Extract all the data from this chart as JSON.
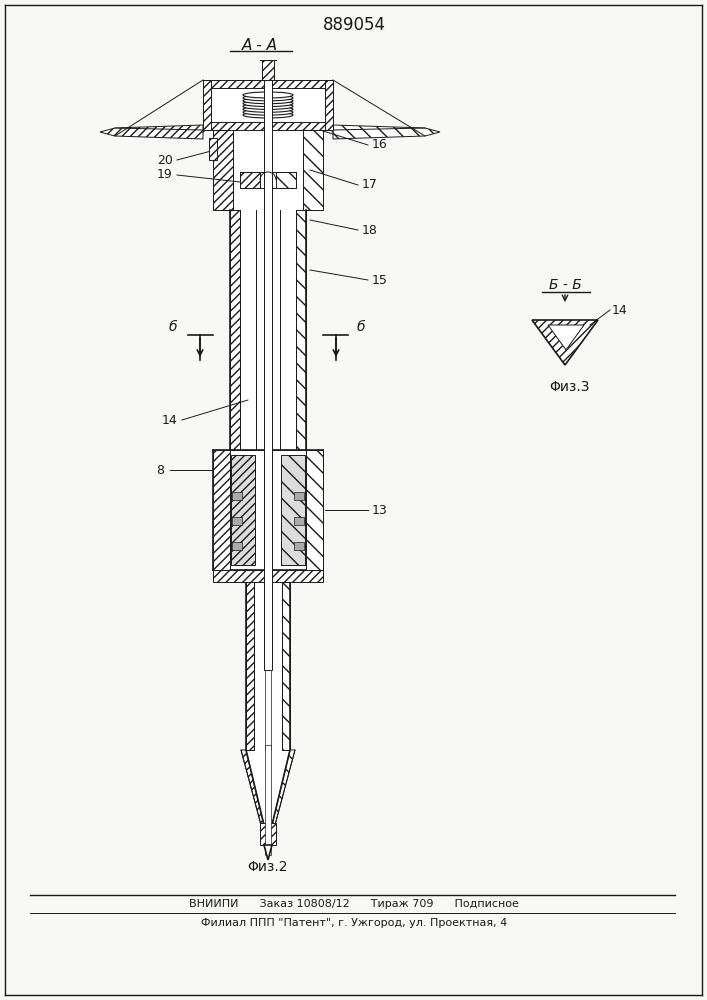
{
  "patent_number": "889054",
  "section_aa_label": "А - А",
  "section_bb_label": "Б - Б",
  "fig2_label": "Φиз.2",
  "fig3_label": "Φиз.3",
  "footer_line1": "ВНИИПИ      Заказ 10808/12      Тираж 709      Подписное",
  "footer_line2": "Филиал ППП \"Патент\", г. Ужгород, ул. Проектная, 4",
  "bg_color": "#f8f8f5",
  "line_color": "#1a1a1a"
}
